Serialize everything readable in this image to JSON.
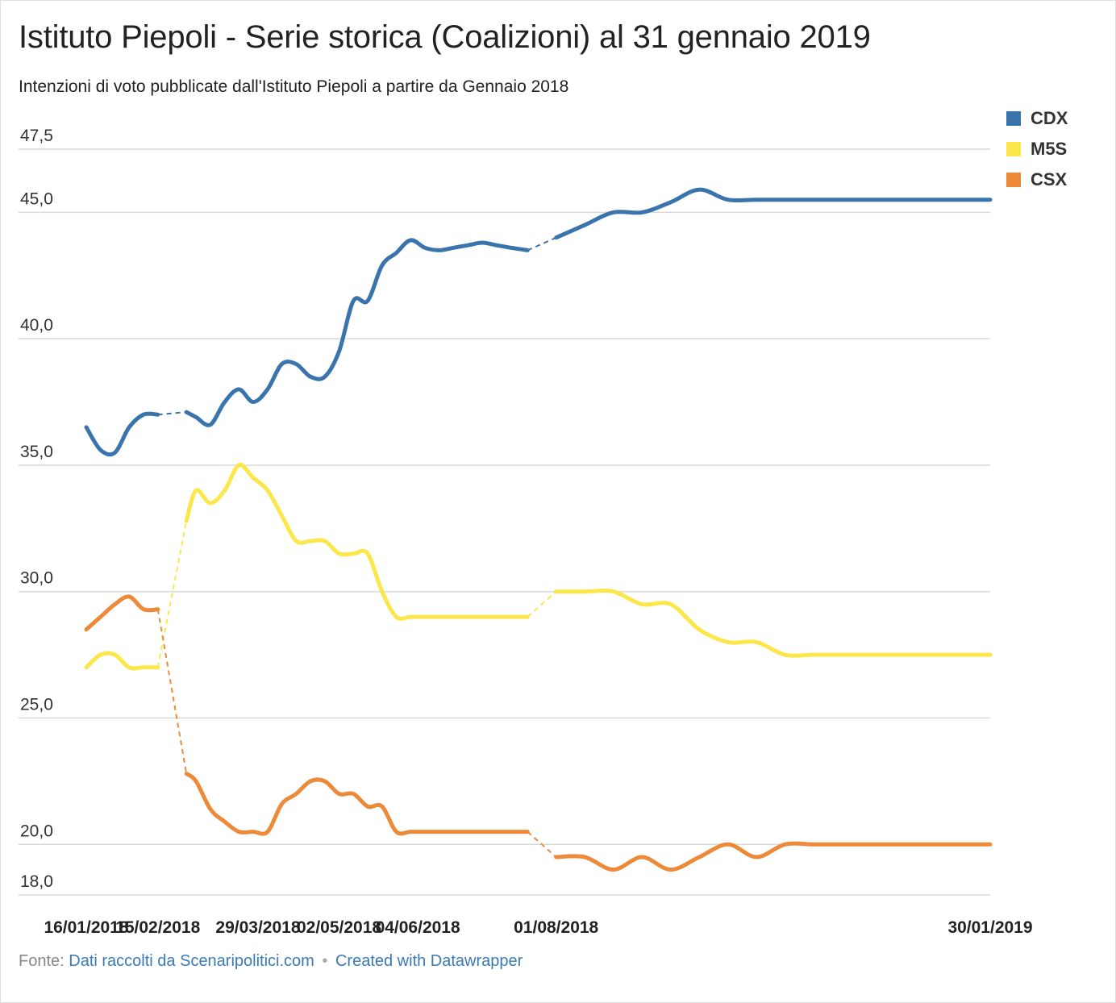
{
  "title": "Istituto Piepoli - Serie storica (Coalizioni) al 31 gennaio 2019",
  "subtitle": "Intenzioni di voto pubblicate dall'Istituto Piepoli a partire da Gennaio 2018",
  "footer": {
    "prefix": "Fonte:",
    "source_link": "Dati raccolti da Scenaripolitici.com",
    "separator": "•",
    "credit_link": "Created with Datawrapper"
  },
  "chart_data": {
    "type": "line",
    "title": "Istituto Piepoli - Serie storica (Coalizioni) al 31 gennaio 2019",
    "xlabel": "",
    "ylabel": "",
    "ylim": [
      18.0,
      47.5
    ],
    "xlim": [
      "2018-01-16",
      "2019-01-30"
    ],
    "y_ticks": [
      18.0,
      20.0,
      25.0,
      30.0,
      35.0,
      40.0,
      45.0,
      47.5
    ],
    "y_tick_labels": [
      "18,0",
      "20,0",
      "25,0",
      "30,0",
      "35,0",
      "40,0",
      "45,0",
      "47,5"
    ],
    "x_ticks": [
      "2018-01-16",
      "2018-02-15",
      "2018-03-29",
      "2018-05-02",
      "2018-06-04",
      "2018-08-01",
      "2019-01-30"
    ],
    "x_tick_labels": [
      "16/01/2018",
      "15/02/2018",
      "29/03/2018",
      "02/05/2018",
      "04/06/2018",
      "01/08/2018",
      "30/01/2019"
    ],
    "grid": true,
    "legend_position": "top-right",
    "gaps": [
      [
        "2018-02-15",
        "2018-02-27"
      ],
      [
        "2018-07-20",
        "2018-08-01"
      ]
    ],
    "series": [
      {
        "name": "CDX",
        "color": "#3a74ad",
        "points": [
          [
            "2018-01-16",
            36.5
          ],
          [
            "2018-01-22",
            35.6
          ],
          [
            "2018-01-28",
            35.5
          ],
          [
            "2018-02-03",
            36.5
          ],
          [
            "2018-02-09",
            37.0
          ],
          [
            "2018-02-15",
            37.0
          ],
          [
            "2018-02-27",
            37.1
          ],
          [
            "2018-03-03",
            36.9
          ],
          [
            "2018-03-09",
            36.6
          ],
          [
            "2018-03-15",
            37.5
          ],
          [
            "2018-03-21",
            38.0
          ],
          [
            "2018-03-27",
            37.5
          ],
          [
            "2018-04-02",
            38.0
          ],
          [
            "2018-04-08",
            39.0
          ],
          [
            "2018-04-14",
            39.0
          ],
          [
            "2018-04-20",
            38.5
          ],
          [
            "2018-04-26",
            38.5
          ],
          [
            "2018-05-02",
            39.5
          ],
          [
            "2018-05-08",
            41.5
          ],
          [
            "2018-05-14",
            41.5
          ],
          [
            "2018-05-20",
            42.9
          ],
          [
            "2018-05-26",
            43.4
          ],
          [
            "2018-06-01",
            43.9
          ],
          [
            "2018-06-07",
            43.6
          ],
          [
            "2018-06-13",
            43.5
          ],
          [
            "2018-06-19",
            43.6
          ],
          [
            "2018-06-25",
            43.7
          ],
          [
            "2018-07-01",
            43.8
          ],
          [
            "2018-07-07",
            43.7
          ],
          [
            "2018-07-13",
            43.6
          ],
          [
            "2018-07-20",
            43.5
          ],
          [
            "2018-08-01",
            44.0
          ],
          [
            "2018-08-13",
            44.5
          ],
          [
            "2018-08-25",
            45.0
          ],
          [
            "2018-09-06",
            45.0
          ],
          [
            "2018-09-18",
            45.4
          ],
          [
            "2018-09-30",
            45.9
          ],
          [
            "2018-10-12",
            45.5
          ],
          [
            "2018-10-24",
            45.5
          ],
          [
            "2018-11-05",
            45.5
          ],
          [
            "2018-11-17",
            45.5
          ],
          [
            "2018-11-29",
            45.5
          ],
          [
            "2018-12-11",
            45.5
          ],
          [
            "2018-12-23",
            45.5
          ],
          [
            "2019-01-04",
            45.5
          ],
          [
            "2019-01-16",
            45.5
          ],
          [
            "2019-01-30",
            45.5
          ]
        ]
      },
      {
        "name": "M5S",
        "color": "#fbe74a",
        "points": [
          [
            "2018-01-16",
            27.0
          ],
          [
            "2018-01-22",
            27.5
          ],
          [
            "2018-01-28",
            27.5
          ],
          [
            "2018-02-03",
            27.0
          ],
          [
            "2018-02-09",
            27.0
          ],
          [
            "2018-02-15",
            27.0
          ],
          [
            "2018-02-27",
            32.8
          ],
          [
            "2018-03-03",
            34.0
          ],
          [
            "2018-03-09",
            33.5
          ],
          [
            "2018-03-15",
            34.0
          ],
          [
            "2018-03-21",
            35.0
          ],
          [
            "2018-03-27",
            34.5
          ],
          [
            "2018-04-02",
            34.0
          ],
          [
            "2018-04-08",
            33.0
          ],
          [
            "2018-04-14",
            32.0
          ],
          [
            "2018-04-20",
            32.0
          ],
          [
            "2018-04-26",
            32.0
          ],
          [
            "2018-05-02",
            31.5
          ],
          [
            "2018-05-08",
            31.5
          ],
          [
            "2018-05-14",
            31.5
          ],
          [
            "2018-05-20",
            30.0
          ],
          [
            "2018-05-26",
            29.0
          ],
          [
            "2018-06-01",
            29.0
          ],
          [
            "2018-06-07",
            29.0
          ],
          [
            "2018-06-13",
            29.0
          ],
          [
            "2018-06-19",
            29.0
          ],
          [
            "2018-06-25",
            29.0
          ],
          [
            "2018-07-01",
            29.0
          ],
          [
            "2018-07-07",
            29.0
          ],
          [
            "2018-07-13",
            29.0
          ],
          [
            "2018-07-20",
            29.0
          ],
          [
            "2018-08-01",
            30.0
          ],
          [
            "2018-08-13",
            30.0
          ],
          [
            "2018-08-25",
            30.0
          ],
          [
            "2018-09-06",
            29.5
          ],
          [
            "2018-09-18",
            29.5
          ],
          [
            "2018-09-30",
            28.5
          ],
          [
            "2018-10-12",
            28.0
          ],
          [
            "2018-10-24",
            28.0
          ],
          [
            "2018-11-05",
            27.5
          ],
          [
            "2018-11-17",
            27.5
          ],
          [
            "2018-11-29",
            27.5
          ],
          [
            "2018-12-11",
            27.5
          ],
          [
            "2018-12-23",
            27.5
          ],
          [
            "2019-01-04",
            27.5
          ],
          [
            "2019-01-16",
            27.5
          ],
          [
            "2019-01-30",
            27.5
          ]
        ]
      },
      {
        "name": "CSX",
        "color": "#ec8a3a",
        "points": [
          [
            "2018-01-16",
            28.5
          ],
          [
            "2018-01-22",
            29.0
          ],
          [
            "2018-01-28",
            29.5
          ],
          [
            "2018-02-03",
            29.8
          ],
          [
            "2018-02-09",
            29.3
          ],
          [
            "2018-02-15",
            29.3
          ],
          [
            "2018-02-27",
            22.8
          ],
          [
            "2018-03-03",
            22.5
          ],
          [
            "2018-03-09",
            21.4
          ],
          [
            "2018-03-15",
            20.9
          ],
          [
            "2018-03-21",
            20.5
          ],
          [
            "2018-03-27",
            20.5
          ],
          [
            "2018-04-02",
            20.5
          ],
          [
            "2018-04-08",
            21.6
          ],
          [
            "2018-04-14",
            22.0
          ],
          [
            "2018-04-20",
            22.5
          ],
          [
            "2018-04-26",
            22.5
          ],
          [
            "2018-05-02",
            22.0
          ],
          [
            "2018-05-08",
            22.0
          ],
          [
            "2018-05-14",
            21.5
          ],
          [
            "2018-05-20",
            21.5
          ],
          [
            "2018-05-26",
            20.5
          ],
          [
            "2018-06-01",
            20.5
          ],
          [
            "2018-06-07",
            20.5
          ],
          [
            "2018-06-13",
            20.5
          ],
          [
            "2018-06-19",
            20.5
          ],
          [
            "2018-06-25",
            20.5
          ],
          [
            "2018-07-01",
            20.5
          ],
          [
            "2018-07-07",
            20.5
          ],
          [
            "2018-07-13",
            20.5
          ],
          [
            "2018-07-20",
            20.5
          ],
          [
            "2018-08-01",
            19.5
          ],
          [
            "2018-08-13",
            19.5
          ],
          [
            "2018-08-25",
            19.0
          ],
          [
            "2018-09-06",
            19.5
          ],
          [
            "2018-09-18",
            19.0
          ],
          [
            "2018-09-30",
            19.5
          ],
          [
            "2018-10-12",
            20.0
          ],
          [
            "2018-10-24",
            19.5
          ],
          [
            "2018-11-05",
            20.0
          ],
          [
            "2018-11-17",
            20.0
          ],
          [
            "2018-11-29",
            20.0
          ],
          [
            "2018-12-11",
            20.0
          ],
          [
            "2018-12-23",
            20.0
          ],
          [
            "2019-01-04",
            20.0
          ],
          [
            "2019-01-16",
            20.0
          ],
          [
            "2019-01-30",
            20.0
          ]
        ]
      }
    ]
  }
}
